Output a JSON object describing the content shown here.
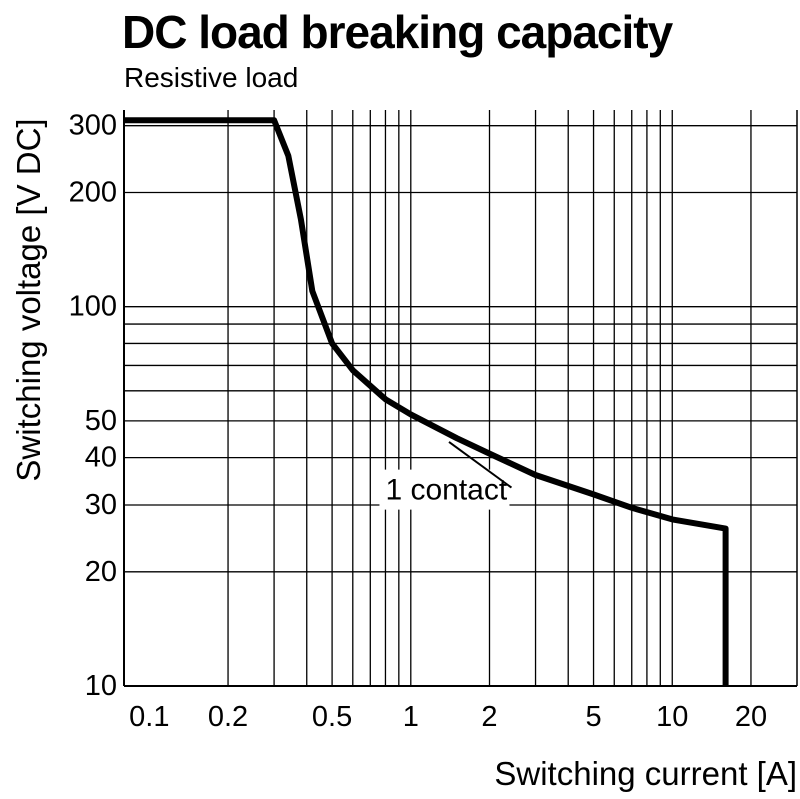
{
  "chart_data": {
    "type": "line",
    "title": "DC load breaking capacity",
    "subtitle": "Resistive load",
    "xlabel": "Switching current [A]",
    "ylabel": "Switching voltage [V DC]",
    "x_scale": "log",
    "y_scale": "log",
    "xlim": [
      0.08,
      30
    ],
    "ylim": [
      10,
      330
    ],
    "grid": true,
    "x_gridlines": [
      0.2,
      0.3,
      0.4,
      0.5,
      0.6,
      0.7,
      0.8,
      0.9,
      1,
      2,
      3,
      4,
      5,
      6,
      7,
      8,
      9,
      10,
      20
    ],
    "y_gridlines": [
      20,
      30,
      40,
      50,
      60,
      70,
      80,
      90,
      100,
      200,
      300
    ],
    "x_ticks": [
      {
        "value": 0.1,
        "label": "0.1"
      },
      {
        "value": 0.2,
        "label": "0.2"
      },
      {
        "value": 0.5,
        "label": "0.5"
      },
      {
        "value": 1,
        "label": "1"
      },
      {
        "value": 2,
        "label": "2"
      },
      {
        "value": 5,
        "label": "5"
      },
      {
        "value": 10,
        "label": "10"
      },
      {
        "value": 20,
        "label": "20"
      }
    ],
    "y_ticks": [
      {
        "value": 10,
        "label": "10"
      },
      {
        "value": 20,
        "label": "20"
      },
      {
        "value": 30,
        "label": "30"
      },
      {
        "value": 40,
        "label": "40"
      },
      {
        "value": 50,
        "label": "50"
      },
      {
        "value": 100,
        "label": "100"
      },
      {
        "value": 200,
        "label": "200"
      },
      {
        "value": 300,
        "label": "300"
      }
    ],
    "series": [
      {
        "name": "1 contact",
        "x": [
          0.08,
          0.3,
          0.34,
          0.38,
          0.42,
          0.5,
          0.6,
          0.8,
          1,
          1.5,
          2,
          3,
          5,
          7,
          10,
          16,
          16
        ],
        "y": [
          310,
          310,
          250,
          170,
          110,
          80,
          68,
          57,
          52,
          45,
          41,
          36,
          32,
          29.5,
          27.5,
          26,
          10
        ]
      }
    ],
    "annotations": [
      {
        "text": "1 contact",
        "x": 0.8,
        "y": 31,
        "points_to": {
          "x": 1.4,
          "y": 44
        }
      }
    ],
    "colors": {
      "line": "#000000",
      "grid": "#000000",
      "background": "#ffffff"
    }
  }
}
